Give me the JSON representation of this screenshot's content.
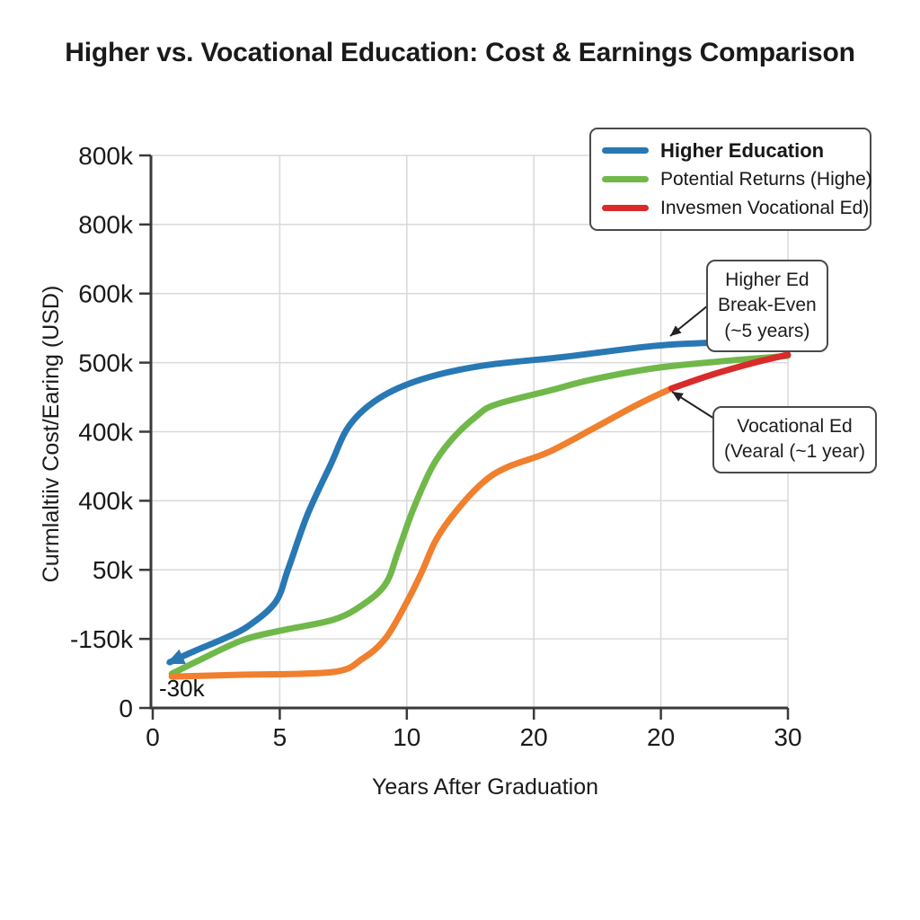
{
  "title": "Higher vs. Vocational Education: Cost & Earnings Comparison",
  "legend": {
    "items": [
      {
        "label": "Higher Education",
        "color": "#2878b4",
        "bold": true
      },
      {
        "label": "Potential Returns (Highe)",
        "color": "#70b84a",
        "bold": false
      },
      {
        "label": "Invesmen Vocational Ed)",
        "color": "#d92b2b",
        "bold": false
      }
    ]
  },
  "annotations": {
    "break_even": {
      "text": "Higher Ed\nBreak-Even\n(~5 years)"
    },
    "vocational": {
      "text": "Vocational Ed\n(Vearal (~1 year)"
    },
    "start_label": "-30k"
  },
  "chart_data": {
    "type": "line",
    "title": "Higher vs. Vocational Education: Cost & Earnings Comparison",
    "xlabel": "Years After Graduation",
    "ylabel": "Curmlaltiiv Cost/Earing (USD)",
    "units": "thousand USD",
    "grid": true,
    "legend_position": "upper right",
    "x_range_years": [
      0,
      30
    ],
    "x_tick_labels": [
      "0",
      "5",
      "10",
      "20",
      "20",
      "30"
    ],
    "y_tick_labels_top_to_bottom": [
      "800k",
      "800k",
      "600k",
      "500k",
      "400k",
      "400k",
      "50k",
      "-150k",
      "0"
    ],
    "colors": {
      "higher_ed": "#2878b4",
      "potential_returns": "#70b84a",
      "vocational_orange": "#f07f2e",
      "vocational_red": "#d92b2b",
      "grid": "#d9d9d9",
      "axis": "#3a3a3a"
    },
    "series": [
      {
        "name": "Higher Education",
        "color": "#2878b4",
        "marker": "arrow-start-dot-end",
        "points": [
          [
            0.8,
            -30
          ],
          [
            2,
            -10
          ],
          [
            3.4,
            12
          ],
          [
            4.5,
            33
          ],
          [
            5.8,
            75
          ],
          [
            6.4,
            133
          ],
          [
            7.3,
            227
          ],
          [
            8.4,
            315
          ],
          [
            9.3,
            384
          ],
          [
            10.7,
            431
          ],
          [
            12.7,
            464
          ],
          [
            15.6,
            488
          ],
          [
            19.4,
            503
          ],
          [
            23.6,
            522
          ],
          [
            26.4,
            528
          ],
          [
            29.7,
            530
          ]
        ]
      },
      {
        "name": "Potential Returns (Highe)",
        "color": "#70b84a",
        "marker": "none",
        "points": [
          [
            0.9,
            -50
          ],
          [
            2,
            -30
          ],
          [
            4.2,
            8
          ],
          [
            6,
            25
          ],
          [
            8.5,
            44
          ],
          [
            9.9,
            70
          ],
          [
            11,
            107
          ],
          [
            11.6,
            165
          ],
          [
            12.3,
            237
          ],
          [
            13.2,
            311
          ],
          [
            14.1,
            358
          ],
          [
            15.3,
            400
          ],
          [
            16.2,
            420
          ],
          [
            18.7,
            444
          ],
          [
            20.8,
            464
          ],
          [
            23.6,
            483
          ],
          [
            26.4,
            494
          ],
          [
            30,
            505
          ]
        ]
      },
      {
        "name": "Vocational Ed (orange segment)",
        "color": "#f07f2e",
        "marker": "none",
        "points": [
          [
            0.9,
            -55
          ],
          [
            4,
            -52
          ],
          [
            8.5,
            -47
          ],
          [
            9.9,
            -24
          ],
          [
            11,
            12
          ],
          [
            12,
            75
          ],
          [
            12.7,
            127
          ],
          [
            13.4,
            185
          ],
          [
            14.4,
            237
          ],
          [
            15.6,
            284
          ],
          [
            16.7,
            310
          ],
          [
            18.7,
            337
          ],
          [
            20.8,
            378
          ],
          [
            22.9,
            420
          ],
          [
            24.5,
            448
          ]
        ]
      },
      {
        "name": "Invesmen Vocational Ed) (red segment)",
        "color": "#d92b2b",
        "marker": "none",
        "points": [
          [
            24.5,
            448
          ],
          [
            26.4,
            472
          ],
          [
            28.5,
            494
          ],
          [
            30,
            507
          ]
        ]
      }
    ]
  }
}
